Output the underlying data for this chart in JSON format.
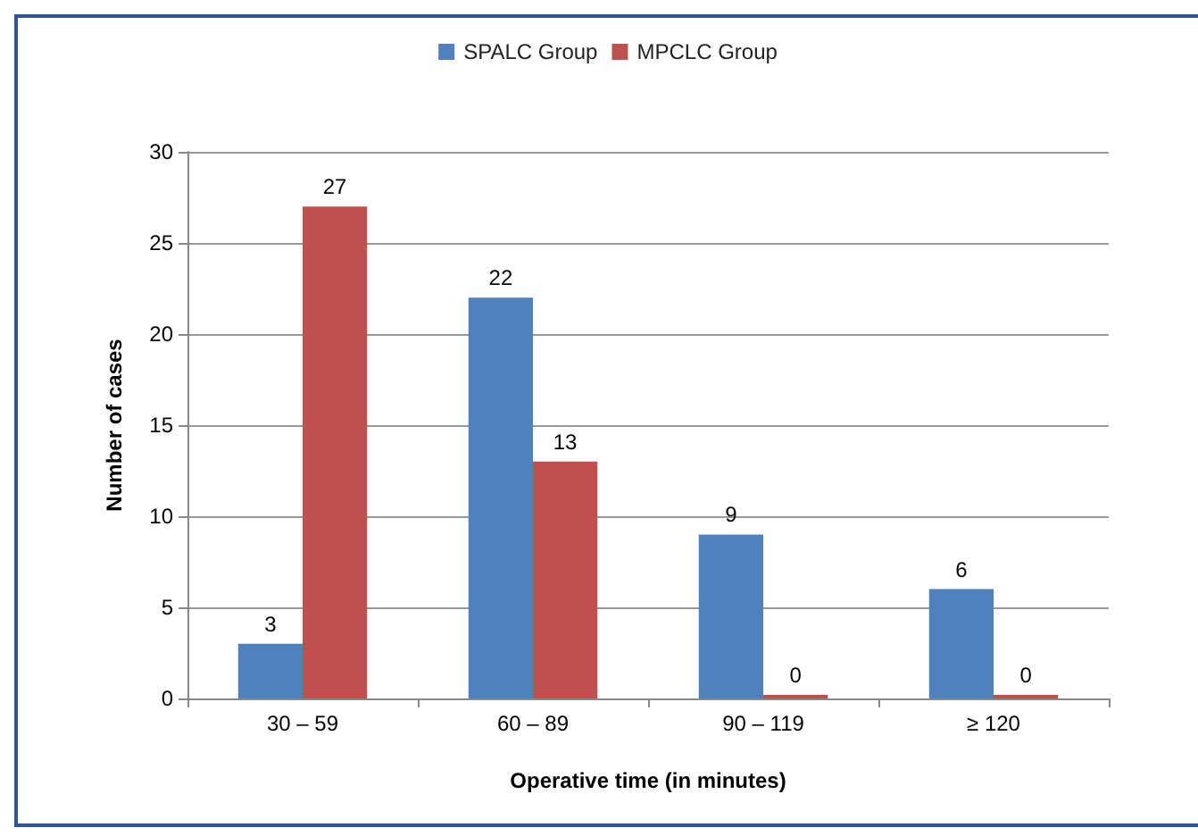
{
  "chart_data": {
    "type": "bar",
    "xlabel": "Operative time (in minutes)",
    "ylabel": "Number of cases",
    "categories": [
      "30 – 59",
      "60 – 89",
      "90 – 119",
      "≥ 120"
    ],
    "series": [
      {
        "name": "SPALC Group",
        "color": "#4f81bd",
        "values": [
          3,
          22,
          9,
          6
        ]
      },
      {
        "name": "MPCLC Group",
        "color": "#c0504d",
        "values": [
          27,
          13,
          0,
          0
        ]
      }
    ],
    "ylim": [
      0,
      30
    ],
    "yticks": [
      0,
      5,
      10,
      15,
      20,
      25,
      30
    ],
    "grid": "y",
    "legend": "top",
    "data_labels": true
  }
}
